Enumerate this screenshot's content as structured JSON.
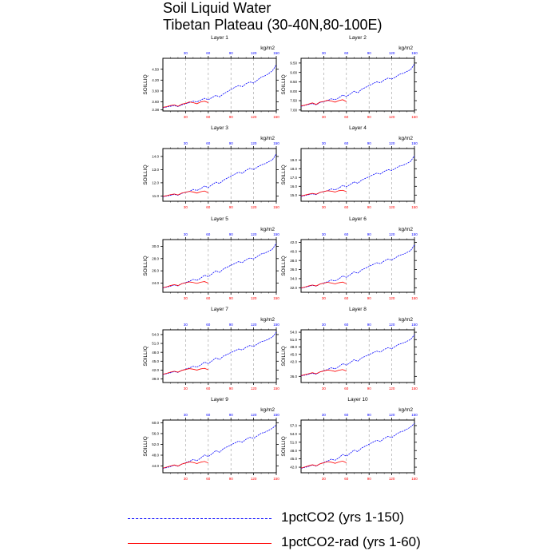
{
  "title": {
    "line1": "Soil Liquid Water",
    "line2": "Tibetan Plateau (30-40N,80-100E)"
  },
  "colors": {
    "series_150": "#0000ff",
    "series_60": "#ff0000",
    "grid": "#999999"
  },
  "legend": {
    "items": [
      {
        "label": "1pctCO2 (yrs 1-150)",
        "color": "#0000ff",
        "style": "dashed"
      },
      {
        "label": "1pctCO2-rad (yrs 1-60)",
        "color": "#ff0000",
        "style": "solid"
      }
    ]
  },
  "chart_data": [
    {
      "type": "line",
      "title": "Layer 1",
      "units": "kg/m2",
      "ylabel": "SOILLIQ",
      "xlim": [
        0,
        150
      ],
      "x_ticks": [
        30,
        60,
        90,
        120,
        150
      ],
      "ylim": [
        3.35,
        4.8
      ],
      "yticks": [
        "3.38",
        "3.60",
        "3.90",
        "4.20",
        "4.50"
      ],
      "grid": "vertical dashed",
      "series": [
        {
          "name": "1pctCO2 (yrs 1-150)",
          "color": "#0000ff",
          "values": [
            3.44,
            3.46,
            3.48,
            3.5,
            3.47,
            3.52,
            3.55,
            3.58,
            3.62,
            3.6,
            3.65,
            3.7,
            3.66,
            3.72,
            3.78,
            3.74,
            3.82,
            3.88,
            3.94,
            4.0,
            4.05,
            4.02,
            4.1,
            4.15,
            4.12,
            4.2,
            4.28,
            4.32,
            4.38,
            4.46,
            4.62
          ]
        },
        {
          "name": "1pctCO2-rad (yrs 1-60)",
          "color": "#ff0000",
          "values": [
            3.45,
            3.47,
            3.5,
            3.52,
            3.48,
            3.54,
            3.56,
            3.6,
            3.58,
            3.55,
            3.6,
            3.62,
            3.58
          ]
        }
      ]
    },
    {
      "type": "line",
      "title": "Layer 2",
      "units": "kg/m2",
      "ylabel": "SOILLIQ",
      "xlim": [
        0,
        150
      ],
      "x_ticks": [
        30,
        60,
        90,
        120,
        150
      ],
      "ylim": [
        6.95,
        9.75
      ],
      "yticks": [
        "7.00",
        "7.50",
        "8.00",
        "8.50",
        "9.00",
        "9.50"
      ],
      "grid": "vertical dashed",
      "series": [
        {
          "name": "1pctCO2 (yrs 1-150)",
          "color": "#0000ff",
          "values": [
            7.2,
            7.25,
            7.3,
            7.35,
            7.28,
            7.4,
            7.45,
            7.5,
            7.6,
            7.55,
            7.65,
            7.8,
            7.72,
            7.85,
            8.0,
            7.92,
            8.1,
            8.2,
            8.3,
            8.4,
            8.5,
            8.45,
            8.6,
            8.7,
            8.65,
            8.75,
            8.9,
            8.95,
            9.05,
            9.15,
            9.45
          ]
        },
        {
          "name": "1pctCO2-rad (yrs 1-60)",
          "color": "#ff0000",
          "values": [
            7.22,
            7.26,
            7.32,
            7.38,
            7.3,
            7.42,
            7.46,
            7.52,
            7.48,
            7.42,
            7.5,
            7.55,
            7.45
          ]
        }
      ]
    },
    {
      "type": "line",
      "title": "Layer 3",
      "units": "kg/m2",
      "ylabel": "SOILLIQ",
      "xlim": [
        0,
        150
      ],
      "x_ticks": [
        30,
        60,
        90,
        120,
        150
      ],
      "ylim": [
        10.6,
        14.6
      ],
      "yticks": [
        "11.0",
        "12.0",
        "13.0",
        "14.0"
      ],
      "grid": "vertical dashed",
      "series": [
        {
          "name": "1pctCO2 (yrs 1-150)",
          "color": "#0000ff",
          "values": [
            10.95,
            11.0,
            11.05,
            11.12,
            11.05,
            11.2,
            11.28,
            11.35,
            11.5,
            11.42,
            11.55,
            11.75,
            11.65,
            11.85,
            12.05,
            11.95,
            12.2,
            12.35,
            12.5,
            12.65,
            12.8,
            12.72,
            12.95,
            13.1,
            13.0,
            13.2,
            13.35,
            13.45,
            13.6,
            13.75,
            14.2
          ]
        },
        {
          "name": "1pctCO2-rad (yrs 1-60)",
          "color": "#ff0000",
          "values": [
            10.98,
            11.02,
            11.1,
            11.15,
            11.08,
            11.22,
            11.28,
            11.35,
            11.3,
            11.22,
            11.32,
            11.38,
            11.25
          ]
        }
      ]
    },
    {
      "type": "line",
      "title": "Layer 4",
      "units": "kg/m2",
      "ylabel": "SOILLIQ",
      "xlim": [
        0,
        150
      ],
      "x_ticks": [
        30,
        60,
        90,
        120,
        150
      ],
      "ylim": [
        14.3,
        20.3
      ],
      "yticks": [
        "15.0",
        "16.0",
        "17.0",
        "18.0",
        "19.0"
      ],
      "grid": "vertical dashed",
      "series": [
        {
          "name": "1pctCO2 (yrs 1-150)",
          "color": "#0000ff",
          "values": [
            14.85,
            14.95,
            15.05,
            15.15,
            15.05,
            15.3,
            15.4,
            15.5,
            15.7,
            15.6,
            15.8,
            16.1,
            15.95,
            16.2,
            16.5,
            16.35,
            16.7,
            16.9,
            17.1,
            17.3,
            17.5,
            17.4,
            17.7,
            17.9,
            17.8,
            18.05,
            18.3,
            18.4,
            18.6,
            18.85,
            19.5
          ]
        },
        {
          "name": "1pctCO2-rad (yrs 1-60)",
          "color": "#ff0000",
          "values": [
            14.9,
            15.0,
            15.1,
            15.2,
            15.1,
            15.3,
            15.4,
            15.5,
            15.45,
            15.35,
            15.5,
            15.55,
            15.4
          ]
        }
      ]
    },
    {
      "type": "line",
      "title": "Layer 5",
      "units": "kg/m2",
      "ylabel": "SOILLIQ",
      "xlim": [
        0,
        150
      ],
      "x_ticks": [
        30,
        60,
        90,
        120,
        150
      ],
      "ylim": [
        22.5,
        31.1
      ],
      "yticks": [
        "24.0",
        "26.0",
        "28.0",
        "30.0"
      ],
      "grid": "vertical dashed",
      "series": [
        {
          "name": "1pctCO2 (yrs 1-150)",
          "color": "#0000ff",
          "values": [
            23.2,
            23.35,
            23.5,
            23.7,
            23.55,
            23.9,
            24.1,
            24.3,
            24.6,
            24.45,
            24.8,
            25.3,
            25.05,
            25.5,
            26.0,
            25.75,
            26.3,
            26.6,
            26.9,
            27.2,
            27.5,
            27.35,
            27.8,
            28.1,
            27.95,
            28.35,
            28.75,
            28.9,
            29.2,
            29.55,
            30.5
          ]
        },
        {
          "name": "1pctCO2-rad (yrs 1-60)",
          "color": "#ff0000",
          "values": [
            23.25,
            23.4,
            23.6,
            23.75,
            23.6,
            23.9,
            24.05,
            24.2,
            24.1,
            23.95,
            24.15,
            24.25,
            24.0
          ]
        }
      ]
    },
    {
      "type": "line",
      "title": "Layer 6",
      "units": "kg/m2",
      "ylabel": "SOILLIQ",
      "xlim": [
        0,
        150
      ],
      "x_ticks": [
        30,
        60,
        90,
        120,
        150
      ],
      "ylim": [
        31.0,
        42.6
      ],
      "yticks": [
        "32.0",
        "34.0",
        "36.0",
        "38.0",
        "40.0",
        "42.0"
      ],
      "grid": "vertical dashed",
      "series": [
        {
          "name": "1pctCO2 (yrs 1-150)",
          "color": "#0000ff",
          "values": [
            31.9,
            32.1,
            32.3,
            32.55,
            32.35,
            32.8,
            33.05,
            33.3,
            33.7,
            33.5,
            33.95,
            34.6,
            34.3,
            34.85,
            35.5,
            35.2,
            35.9,
            36.3,
            36.7,
            37.1,
            37.5,
            37.3,
            37.9,
            38.3,
            38.1,
            38.6,
            39.15,
            39.35,
            39.75,
            40.2,
            41.4
          ]
        },
        {
          "name": "1pctCO2-rad (yrs 1-60)",
          "color": "#ff0000",
          "values": [
            31.95,
            32.15,
            32.4,
            32.6,
            32.4,
            32.8,
            33.0,
            33.2,
            33.05,
            32.85,
            33.1,
            33.25,
            32.9
          ]
        }
      ]
    },
    {
      "type": "line",
      "title": "Layer 7",
      "units": "kg/m2",
      "ylabel": "SOILLIQ",
      "xlim": [
        0,
        150
      ],
      "x_ticks": [
        30,
        60,
        90,
        120,
        150
      ],
      "ylim": [
        37.8,
        55.6
      ],
      "yticks": [
        "39.0",
        "42.0",
        "45.0",
        "48.0",
        "51.0",
        "54.0"
      ],
      "grid": "vertical dashed",
      "series": [
        {
          "name": "1pctCO2 (yrs 1-150)",
          "color": "#0000ff",
          "values": [
            40.5,
            40.8,
            41.1,
            41.5,
            41.2,
            41.9,
            42.3,
            42.7,
            43.3,
            43.0,
            43.7,
            44.7,
            44.2,
            45.1,
            46.1,
            45.6,
            46.7,
            47.3,
            47.9,
            48.5,
            49.1,
            48.8,
            49.7,
            50.3,
            50.0,
            50.8,
            51.6,
            51.9,
            52.5,
            53.2,
            54.8
          ]
        },
        {
          "name": "1pctCO2-rad (yrs 1-60)",
          "color": "#ff0000",
          "values": [
            40.6,
            40.9,
            41.3,
            41.6,
            41.3,
            41.9,
            42.2,
            42.5,
            42.3,
            42.0,
            42.4,
            42.6,
            42.1
          ]
        }
      ]
    },
    {
      "type": "line",
      "title": "Layer 8",
      "units": "kg/m2",
      "ylabel": "SOILLIQ",
      "xlim": [
        0,
        150
      ],
      "x_ticks": [
        30,
        60,
        90,
        120,
        150
      ],
      "ylim": [
        33.5,
        55.0
      ],
      "yticks": [
        "36.0",
        "42.0",
        "45.0",
        "48.0",
        "51.0",
        "54.0"
      ],
      "grid": "vertical dashed",
      "series": [
        {
          "name": "1pctCO2 (yrs 1-150)",
          "color": "#0000ff",
          "values": [
            36.2,
            36.5,
            36.9,
            37.3,
            36.9,
            37.8,
            38.3,
            38.8,
            39.5,
            39.1,
            40.0,
            41.2,
            40.6,
            41.6,
            42.8,
            42.2,
            43.5,
            44.2,
            44.9,
            45.6,
            46.3,
            45.9,
            47.0,
            47.7,
            47.3,
            48.3,
            49.2,
            49.6,
            50.3,
            51.1,
            53.0
          ]
        },
        {
          "name": "1pctCO2-rad (yrs 1-60)",
          "color": "#ff0000",
          "values": [
            36.3,
            36.7,
            37.1,
            37.5,
            37.1,
            37.8,
            38.2,
            38.6,
            38.4,
            38.0,
            38.5,
            38.8,
            38.2
          ]
        }
      ]
    },
    {
      "type": "line",
      "title": "Layer 9",
      "units": "kg/m2",
      "ylabel": "SOILLIQ",
      "xlim": [
        0,
        150
      ],
      "x_ticks": [
        30,
        60,
        90,
        120,
        150
      ],
      "ylim": [
        41.5,
        61.0
      ],
      "yticks": [
        "44.0",
        "48.0",
        "52.0",
        "56.0",
        "60.0"
      ],
      "grid": "vertical dashed",
      "series": [
        {
          "name": "1pctCO2 (yrs 1-150)",
          "color": "#0000ff",
          "values": [
            43.1,
            43.4,
            43.8,
            44.3,
            43.9,
            44.7,
            45.2,
            45.7,
            46.4,
            46.0,
            46.9,
            48.1,
            47.5,
            48.5,
            49.7,
            49.1,
            50.4,
            51.1,
            51.8,
            52.5,
            53.2,
            52.8,
            53.9,
            54.6,
            54.2,
            55.2,
            56.1,
            56.5,
            57.2,
            58.0,
            59.2
          ]
        },
        {
          "name": "1pctCO2-rad (yrs 1-60)",
          "color": "#ff0000",
          "values": [
            43.2,
            43.6,
            44.0,
            44.4,
            44.0,
            44.7,
            45.1,
            45.5,
            45.3,
            44.9,
            45.4,
            45.7,
            45.1
          ]
        }
      ]
    },
    {
      "type": "line",
      "title": "Layer 10",
      "units": "kg/m2",
      "ylabel": "SOILLIQ",
      "xlim": [
        0,
        150
      ],
      "x_ticks": [
        30,
        60,
        90,
        120,
        150
      ],
      "ylim": [
        40.0,
        59.0
      ],
      "yticks": [
        "42.0",
        "45.0",
        "48.0",
        "51.0",
        "54.0",
        "57.0"
      ],
      "grid": "vertical dashed",
      "series": [
        {
          "name": "1pctCO2 (yrs 1-150)",
          "color": "#0000ff",
          "values": [
            41.6,
            41.9,
            42.3,
            42.8,
            42.4,
            43.2,
            43.7,
            44.2,
            44.9,
            44.5,
            45.4,
            46.6,
            46.0,
            47.0,
            48.2,
            47.6,
            48.9,
            49.6,
            50.3,
            51.0,
            51.7,
            51.3,
            52.4,
            53.1,
            52.7,
            53.7,
            54.6,
            55.0,
            55.7,
            56.5,
            57.8
          ]
        },
        {
          "name": "1pctCO2-rad (yrs 1-60)",
          "color": "#ff0000",
          "values": [
            41.7,
            42.1,
            42.5,
            42.9,
            42.5,
            43.2,
            43.6,
            44.0,
            43.8,
            43.4,
            43.9,
            44.2,
            43.6
          ]
        }
      ]
    }
  ]
}
